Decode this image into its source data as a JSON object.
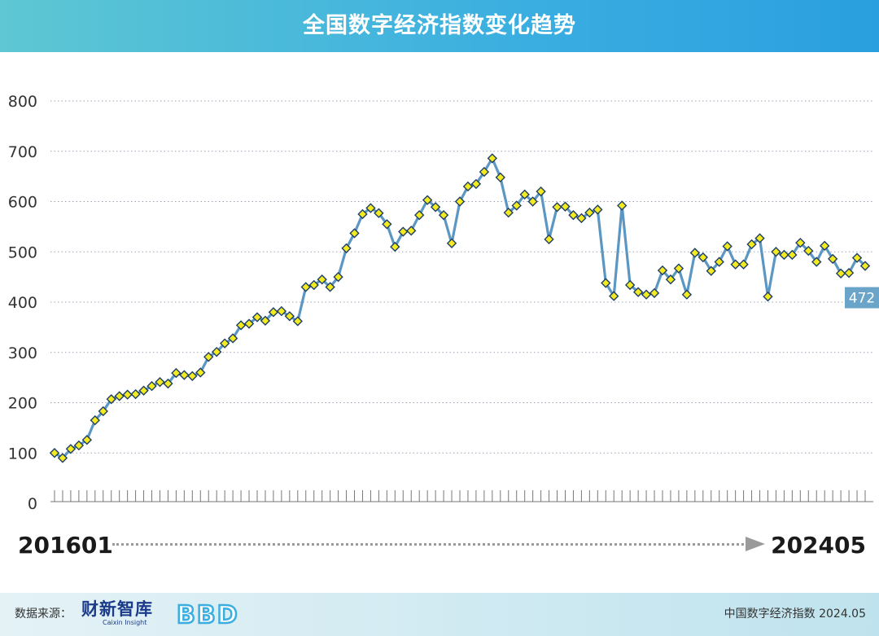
{
  "header": {
    "title": "全国数字经济指数变化趋势"
  },
  "range": {
    "start": "201601",
    "end": "202405"
  },
  "footer": {
    "source_label": "数据来源：",
    "logo_caixin_cn": "财新智库",
    "logo_caixin_en": "Caixin Insight",
    "logo_bbd": "BBD",
    "right_text": "中国数字经济指数 2024.05"
  },
  "colors": {
    "line": "#5b97c2",
    "marker_fill": "#f3ea1f",
    "marker_stroke": "#1f3f66",
    "header": "#3aaee0",
    "label_bg": "#6aa4c9"
  },
  "chart_data": {
    "type": "line",
    "title": "全国数字经济指数变化趋势",
    "xlabel": "",
    "ylabel": "",
    "ylim": [
      0,
      800
    ],
    "yticks": [
      0,
      100,
      200,
      300,
      400,
      500,
      600,
      700,
      800
    ],
    "grid": true,
    "x_start": "201601",
    "x_end": "202405",
    "last_value_label": "472",
    "values": [
      100,
      90,
      108,
      115,
      126,
      165,
      183,
      207,
      213,
      216,
      217,
      224,
      233,
      241,
      238,
      259,
      255,
      253,
      260,
      291,
      301,
      318,
      328,
      354,
      357,
      370,
      363,
      380,
      382,
      372,
      362,
      430,
      434,
      445,
      430,
      450,
      507,
      537,
      575,
      587,
      577,
      555,
      510,
      540,
      542,
      573,
      603,
      589,
      573,
      517,
      600,
      630,
      635,
      659,
      686,
      648,
      578,
      592,
      614,
      600,
      620,
      525,
      589,
      590,
      573,
      567,
      578,
      584,
      438,
      412,
      592,
      434,
      420,
      415,
      418,
      463,
      445,
      467,
      415,
      498,
      489,
      462,
      480,
      511,
      475,
      475,
      515,
      527,
      411,
      500,
      494,
      494,
      518,
      502,
      480,
      512,
      486,
      457,
      458,
      488,
      472
    ]
  }
}
